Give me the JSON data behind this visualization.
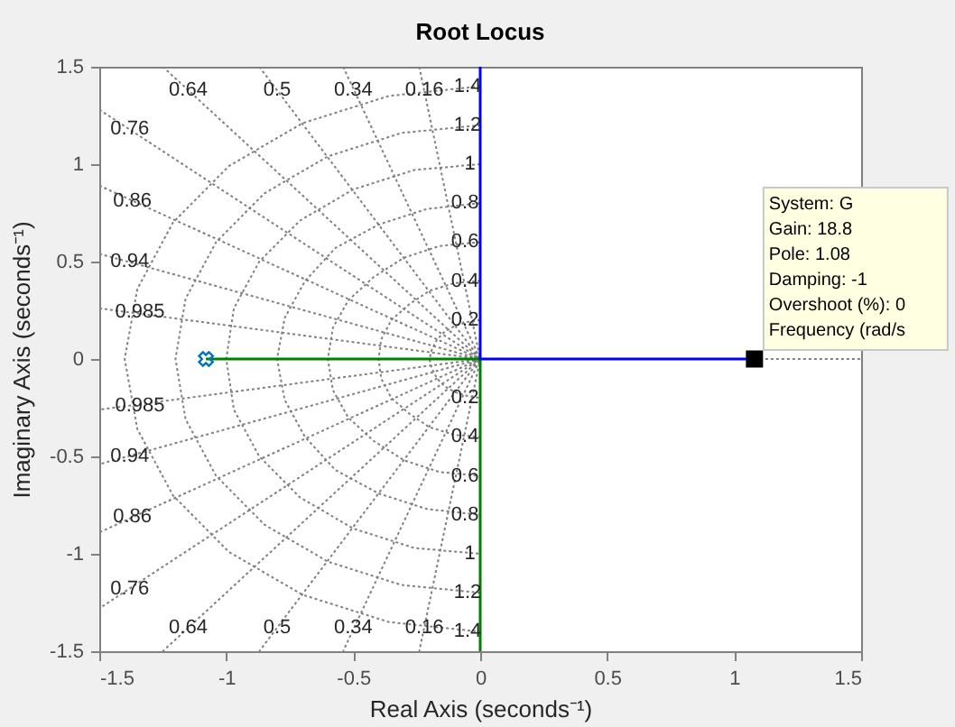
{
  "chart_data": {
    "type": "line",
    "title": "Root Locus",
    "xlabel": "Real Axis (seconds⁻¹)",
    "ylabel": "Imaginary Axis (seconds⁻¹)",
    "xlim": [
      -1.5,
      1.5
    ],
    "ylim": [
      -1.5,
      1.5
    ],
    "xticks": [
      -1.5,
      -1,
      -0.5,
      0,
      0.5,
      1,
      1.5
    ],
    "yticks": [
      -1.5,
      -1,
      -0.5,
      0,
      0.5,
      1,
      1.5
    ],
    "grid": false,
    "series": [
      {
        "color": "#808080",
        "line_style": "dotted",
        "x": [
          1.08,
          1.5
        ],
        "values": [
          0,
          0
        ]
      },
      {
        "color": "#808080",
        "line_style": "dotted",
        "x": [
          -1.5,
          0,
          -1.5
        ],
        "values": [
          0.26,
          0,
          -0.26
        ]
      },
      {
        "color": "#808080",
        "line_style": "dotted",
        "x": [
          -1.5,
          0,
          -1.5
        ],
        "values": [
          0.54,
          0,
          -0.54
        ]
      },
      {
        "color": "#808080",
        "line_style": "dotted",
        "x": [
          -1.5,
          0,
          -1.5
        ],
        "values": [
          0.89,
          0,
          -0.89
        ]
      },
      {
        "color": "#808080",
        "line_style": "dotted",
        "x": [
          -1.5,
          0,
          -1.5
        ],
        "values": [
          1.28,
          0,
          -1.28
        ]
      },
      {
        "color": "#808080",
        "line_style": "dotted",
        "x": [
          -1.25,
          0,
          -1.25
        ],
        "values": [
          1.5,
          0,
          -1.5
        ]
      },
      {
        "color": "#808080",
        "line_style": "dotted",
        "x": [
          -0.87,
          0,
          -0.87
        ],
        "values": [
          1.5,
          0,
          -1.5
        ]
      },
      {
        "color": "#808080",
        "line_style": "dotted",
        "x": [
          -0.54,
          0,
          -0.54
        ],
        "values": [
          1.5,
          0,
          -1.5
        ]
      },
      {
        "color": "#808080",
        "line_style": "dotted",
        "x": [
          -0.24,
          0,
          -0.24
        ],
        "values": [
          1.5,
          0,
          -1.5
        ]
      },
      {
        "color": "#808080",
        "line_style": "dotted",
        "x": [
          0,
          -0.05,
          -0.1,
          -0.14,
          -0.17,
          -0.19,
          -0.2,
          -0.19,
          -0.17,
          -0.14,
          -0.1,
          -0.05,
          0
        ],
        "values": [
          0.2,
          0.19,
          0.17,
          0.14,
          0.1,
          0.05,
          0,
          -0.05,
          -0.1,
          -0.14,
          -0.17,
          -0.19,
          -0.2
        ]
      },
      {
        "color": "#808080",
        "line_style": "dotted",
        "x": [
          0,
          -0.1,
          -0.2,
          -0.28,
          -0.35,
          -0.39,
          -0.4,
          -0.39,
          -0.35,
          -0.28,
          -0.2,
          -0.1,
          0
        ],
        "values": [
          0.4,
          0.39,
          0.35,
          0.28,
          0.2,
          0.1,
          0,
          -0.1,
          -0.2,
          -0.28,
          -0.35,
          -0.39,
          -0.4
        ]
      },
      {
        "color": "#808080",
        "line_style": "dotted",
        "x": [
          0,
          -0.16,
          -0.3,
          -0.42,
          -0.52,
          -0.58,
          -0.6,
          -0.58,
          -0.52,
          -0.42,
          -0.3,
          -0.16,
          0
        ],
        "values": [
          0.6,
          0.58,
          0.52,
          0.42,
          0.3,
          0.16,
          0,
          -0.16,
          -0.3,
          -0.42,
          -0.52,
          -0.58,
          -0.6
        ]
      },
      {
        "color": "#808080",
        "line_style": "dotted",
        "x": [
          0,
          -0.21,
          -0.4,
          -0.57,
          -0.69,
          -0.77,
          -0.8,
          -0.77,
          -0.69,
          -0.57,
          -0.4,
          -0.21,
          0
        ],
        "values": [
          0.8,
          0.77,
          0.69,
          0.57,
          0.4,
          0.21,
          0,
          -0.21,
          -0.4,
          -0.57,
          -0.69,
          -0.77,
          -0.8
        ]
      },
      {
        "color": "#808080",
        "line_style": "dotted",
        "x": [
          0,
          -0.26,
          -0.5,
          -0.71,
          -0.87,
          -0.97,
          -1,
          -0.97,
          -0.87,
          -0.71,
          -0.5,
          -0.26,
          0
        ],
        "values": [
          1,
          0.97,
          0.87,
          0.71,
          0.5,
          0.26,
          0,
          -0.26,
          -0.5,
          -0.71,
          -0.87,
          -0.97,
          -1
        ]
      },
      {
        "color": "#808080",
        "line_style": "dotted",
        "x": [
          0,
          -0.31,
          -0.6,
          -0.85,
          -1.04,
          -1.16,
          -1.2,
          -1.16,
          -1.04,
          -0.85,
          -0.6,
          -0.31,
          0
        ],
        "values": [
          1.2,
          1.16,
          1.04,
          0.85,
          0.6,
          0.31,
          0,
          -0.31,
          -0.6,
          -0.85,
          -1.04,
          -1.16,
          -1.2
        ]
      },
      {
        "color": "#808080",
        "line_style": "dotted",
        "x": [
          0,
          -0.36,
          -0.7,
          -0.99,
          -1.21,
          -1.35,
          -1.4,
          -1.35,
          -1.21,
          -0.99,
          -0.7,
          -0.36,
          0
        ],
        "values": [
          1.4,
          1.35,
          1.21,
          0.99,
          0.7,
          0.36,
          0,
          -0.36,
          -0.7,
          -0.99,
          -1.21,
          -1.35,
          -1.4
        ]
      },
      {
        "color": "#008000",
        "line_style": "solid",
        "x": [
          -1.08,
          0,
          0
        ],
        "values": [
          0,
          0,
          -1.5
        ]
      },
      {
        "color": "#0000ff",
        "line_style": "solid",
        "x": [
          0,
          0,
          1.08
        ],
        "values": [
          1.5,
          0,
          0
        ]
      },
      {
        "type": "scatter",
        "color": "#0072bd",
        "marker": "cross",
        "x": [
          -1.08
        ],
        "values": [
          0
        ]
      },
      {
        "type": "scatter",
        "color": "#000000",
        "marker": "square",
        "x": [
          1.08
        ],
        "values": [
          0
        ]
      }
    ],
    "annotations": [
      {
        "text": "System: G\nGain: 18.8\nPole: 1.08\nDamping: -1\nOvershoot (%): 0\nFrequency (rad/s",
        "x": 1.08,
        "y": 0
      },
      {
        "text": "0.64",
        "x": -1.15,
        "y": 1.38
      },
      {
        "text": "0.5",
        "x": -0.8,
        "y": 1.38
      },
      {
        "text": "0.34",
        "x": -0.5,
        "y": 1.38
      },
      {
        "text": "0.16",
        "x": -0.22,
        "y": 1.38
      },
      {
        "text": "0.76",
        "x": -1.38,
        "y": 1.18
      },
      {
        "text": "0.86",
        "x": -1.37,
        "y": 0.81
      },
      {
        "text": "0.94",
        "x": -1.38,
        "y": 0.5
      },
      {
        "text": "0.985",
        "x": -1.34,
        "y": 0.24
      },
      {
        "text": "0.64",
        "x": -1.15,
        "y": -1.38
      },
      {
        "text": "0.5",
        "x": -0.8,
        "y": -1.38
      },
      {
        "text": "0.34",
        "x": -0.5,
        "y": -1.38
      },
      {
        "text": "0.16",
        "x": -0.22,
        "y": -1.38
      },
      {
        "text": "0.76",
        "x": -1.38,
        "y": -1.18
      },
      {
        "text": "0.86",
        "x": -1.37,
        "y": -0.81
      },
      {
        "text": "0.94",
        "x": -1.38,
        "y": -0.5
      },
      {
        "text": "0.985",
        "x": -1.34,
        "y": -0.24
      },
      {
        "text": "1.4",
        "x": -0.05,
        "y": 1.4
      },
      {
        "text": "1.2",
        "x": -0.05,
        "y": 1.2
      },
      {
        "text": "1",
        "x": -0.04,
        "y": 1
      },
      {
        "text": "0.8",
        "x": -0.06,
        "y": 0.8
      },
      {
        "text": "0.6",
        "x": -0.06,
        "y": 0.6
      },
      {
        "text": "0.4",
        "x": -0.06,
        "y": 0.4
      },
      {
        "text": "0.2",
        "x": -0.06,
        "y": 0.2
      },
      {
        "text": "0.2",
        "x": -0.06,
        "y": -0.2
      },
      {
        "text": "0.4",
        "x": -0.06,
        "y": -0.4
      },
      {
        "text": "0.6",
        "x": -0.06,
        "y": -0.6
      },
      {
        "text": "0.8",
        "x": -0.06,
        "y": -0.8
      },
      {
        "text": "1",
        "x": -0.04,
        "y": -1
      },
      {
        "text": "1.2",
        "x": -0.05,
        "y": -1.2
      },
      {
        "text": "1.4",
        "x": -0.05,
        "y": -1.4
      }
    ]
  }
}
